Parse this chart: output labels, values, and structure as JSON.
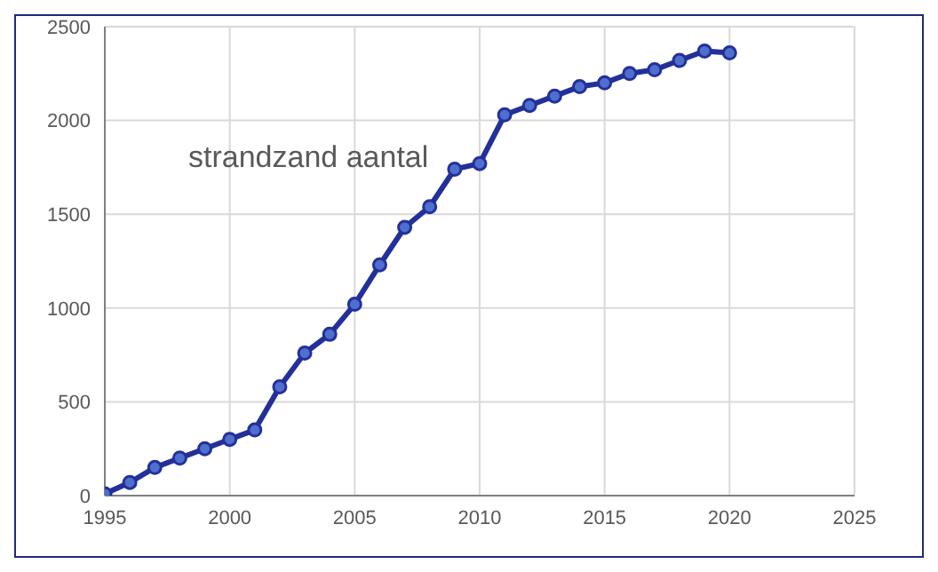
{
  "chart_data": {
    "type": "line",
    "title": "strandzand aantal",
    "x": [
      1995,
      1996,
      1997,
      1998,
      1999,
      2000,
      2001,
      2002,
      2003,
      2004,
      2005,
      2006,
      2007,
      2008,
      2009,
      2010,
      2011,
      2012,
      2013,
      2014,
      2015,
      2016,
      2017,
      2018,
      2019,
      2020
    ],
    "series": [
      {
        "color": "#23309a",
        "values": [
          10,
          70,
          150,
          200,
          250,
          300,
          350,
          580,
          760,
          860,
          1020,
          1230,
          1430,
          1540,
          1740,
          1770,
          2030,
          2080,
          2130,
          2180,
          2200,
          2250,
          2270,
          2320,
          2370,
          2360
        ]
      }
    ],
    "xlim": [
      1995,
      2025
    ],
    "xticks": [
      1995,
      2000,
      2005,
      2010,
      2015,
      2020,
      2025
    ],
    "ylim": [
      0,
      2500
    ],
    "yticks": [
      0,
      500,
      1000,
      1500,
      2000,
      2500
    ],
    "grid": true,
    "marker": "circle",
    "line_style": "solid"
  }
}
